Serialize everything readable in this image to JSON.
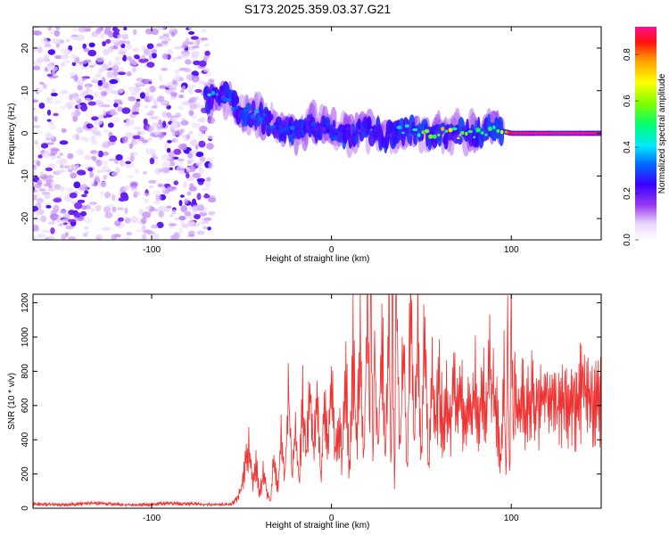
{
  "title": "S173.2025.359.03.37.G21",
  "colorbar": {
    "label": "Normalized spectral amplitude",
    "ticks": [
      0.0,
      0.2,
      0.4,
      0.6,
      0.8
    ],
    "tick_labels": [
      "0.0",
      "0.2",
      "0.4",
      "0.6",
      "0.8"
    ],
    "range": [
      0,
      0.92
    ]
  },
  "chart_data": [
    {
      "type": "heatmap",
      "xlabel": "Height of straight line (km)",
      "ylabel": "Frequency (Hz)",
      "xlim": [
        -166,
        150
      ],
      "ylim": [
        -25,
        25
      ],
      "x_ticks": [
        -100,
        0,
        100
      ],
      "x_tick_labels": [
        "-100",
        "0",
        "100"
      ],
      "y_ticks": [
        -20,
        -10,
        0,
        10,
        20
      ],
      "y_tick_labels": [
        "-20",
        "-10",
        "0",
        "10",
        "20"
      ],
      "ridge": {
        "x": [
          -68,
          -60,
          -50,
          -40,
          -30,
          -20,
          -10,
          0,
          10,
          20,
          30,
          40,
          50,
          60,
          70,
          80,
          90,
          100,
          110,
          120,
          130,
          140,
          150
        ],
        "frequency": [
          8,
          9,
          5,
          4,
          1,
          0,
          2,
          1,
          0,
          1,
          -1,
          1,
          0,
          0,
          0,
          0,
          1,
          0,
          0,
          0,
          0,
          0,
          0
        ],
        "amplitude": [
          0.35,
          0.3,
          0.28,
          0.32,
          0.25,
          0.3,
          0.22,
          0.25,
          0.2,
          0.25,
          0.2,
          0.35,
          0.45,
          0.7,
          0.55,
          0.5,
          0.45,
          0.9,
          0.92,
          0.92,
          0.92,
          0.92,
          0.9
        ]
      }
    },
    {
      "type": "line",
      "xlabel": "Height of straight line (km)",
      "ylabel": "SNR (10 * v/v)",
      "xlim": [
        -166,
        150
      ],
      "ylim": [
        0,
        1250
      ],
      "x_ticks": [
        -100,
        0,
        100
      ],
      "x_tick_labels": [
        "-100",
        "0",
        "100"
      ],
      "y_ticks": [
        0,
        200,
        400,
        600,
        800,
        1000,
        1200
      ],
      "y_tick_labels": [
        "0",
        "200",
        "400",
        "600",
        "800",
        "1000",
        "1200"
      ],
      "series": [
        {
          "color": "#ee3333",
          "x": [
            -166,
            -150,
            -130,
            -110,
            -90,
            -70,
            -60,
            -55,
            -52,
            -50,
            -48,
            -46,
            -44,
            -42,
            -40,
            -38,
            -36,
            -34,
            -32,
            -30,
            -28,
            -26,
            -24,
            -22,
            -20,
            -18,
            -16,
            -14,
            -12,
            -10,
            -8,
            -6,
            -4,
            -2,
            0,
            2,
            4,
            6,
            8,
            10,
            12,
            14,
            16,
            18,
            20,
            21,
            22,
            23,
            24,
            26,
            28,
            30,
            32,
            33,
            34,
            35,
            36,
            38,
            40,
            42,
            44,
            46,
            48,
            50,
            52,
            54,
            56,
            58,
            60,
            62,
            64,
            66,
            68,
            70,
            72,
            74,
            76,
            78,
            80,
            82,
            84,
            86,
            88,
            90,
            92,
            94,
            96,
            97,
            98,
            99,
            100,
            101,
            102,
            104,
            106,
            108,
            110,
            115,
            120,
            125,
            130,
            135,
            140,
            145,
            150
          ],
          "y": [
            25,
            20,
            30,
            18,
            28,
            22,
            20,
            30,
            60,
            120,
            250,
            330,
            150,
            260,
            80,
            200,
            90,
            40,
            300,
            120,
            380,
            150,
            720,
            200,
            450,
            150,
            600,
            250,
            700,
            300,
            650,
            200,
            550,
            350,
            700,
            300,
            520,
            280,
            800,
            200,
            950,
            350,
            1000,
            300,
            1200,
            450,
            1250,
            200,
            900,
            300,
            1100,
            300,
            1180,
            250,
            1200,
            100,
            1250,
            300,
            900,
            200,
            1150,
            350,
            1050,
            300,
            1100,
            250,
            700,
            500,
            750,
            450,
            620,
            500,
            700,
            550,
            680,
            520,
            650,
            500,
            720,
            480,
            700,
            550,
            860,
            650,
            560,
            250,
            820,
            150,
            880,
            200,
            1020,
            400,
            700,
            500,
            750,
            520,
            680,
            560,
            700,
            580,
            650,
            560,
            720,
            600,
            650
          ]
        }
      ]
    }
  ]
}
